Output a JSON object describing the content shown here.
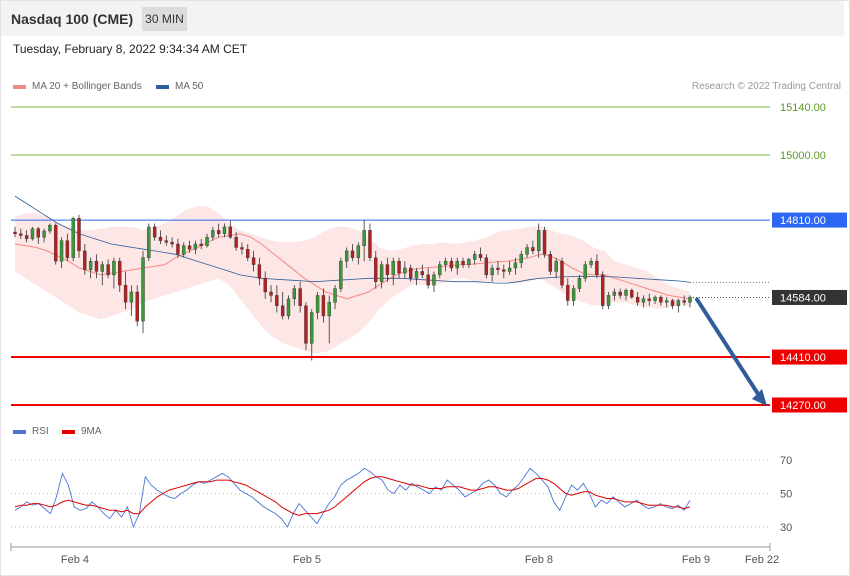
{
  "header": {
    "title": "Nasdaq 100 (CME)",
    "timeframe": "30 MIN",
    "datetime": "Tuesday, February 8, 2022 9:34:34 AM CET"
  },
  "legend": {
    "ma20_label": "MA 20 + Bollinger Bands",
    "ma20_color": "#f28b82",
    "ma50_label": "MA 50",
    "ma50_color": "#2f5d9a"
  },
  "credit": "Research © 2022 Trading Central",
  "rsi_legend": {
    "rsi_label": "RSI",
    "rsi_color": "#4a74d4",
    "ma9_label": "9MA",
    "ma9_color": "#e00000"
  },
  "chart_data": [
    {
      "type": "candlestick",
      "price_range": [
        14270,
        15160
      ],
      "levels": [
        {
          "value": 15140.0,
          "label": "15140.00",
          "style": "thin-green",
          "color": "#7cbd4a"
        },
        {
          "value": 15000.0,
          "label": "15000.00",
          "style": "thin-green",
          "color": "#7cbd4a"
        },
        {
          "value": 14810.0,
          "label": "14810.00",
          "style": "resistance",
          "color": "#2b67f2"
        },
        {
          "value": 14584.0,
          "label": "14584.00",
          "style": "current-price",
          "color": "#333333"
        },
        {
          "value": 14410.0,
          "label": "14410.00",
          "style": "support",
          "color": "#ee0000"
        },
        {
          "value": 14270.0,
          "label": "14270.00",
          "style": "support",
          "color": "#ee0000"
        }
      ],
      "x_tick_labels": [
        "Feb 4",
        "Feb 5",
        "Feb 8",
        "Feb 9",
        "Feb 22"
      ],
      "forecast_arrow": {
        "from": 14584,
        "to": 14270,
        "direction": "down",
        "color": "#2f5d9a"
      },
      "candles": [
        [
          14775,
          14790,
          14760,
          14770
        ],
        [
          14770,
          14785,
          14755,
          14765
        ],
        [
          14765,
          14780,
          14745,
          14755
        ],
        [
          14755,
          14790,
          14750,
          14785
        ],
        [
          14785,
          14790,
          14740,
          14760
        ],
        [
          14760,
          14785,
          14745,
          14778
        ],
        [
          14778,
          14800,
          14770,
          14795
        ],
        [
          14795,
          14800,
          14680,
          14690
        ],
        [
          14690,
          14760,
          14670,
          14750
        ],
        [
          14750,
          14770,
          14690,
          14700
        ],
        [
          14700,
          14820,
          14690,
          14815
        ],
        [
          14815,
          14825,
          14700,
          14720
        ],
        [
          14720,
          14740,
          14650,
          14665
        ],
        [
          14665,
          14700,
          14640,
          14690
        ],
        [
          14690,
          14710,
          14640,
          14660
        ],
        [
          14660,
          14690,
          14620,
          14680
        ],
        [
          14680,
          14695,
          14640,
          14650
        ],
        [
          14650,
          14700,
          14610,
          14690
        ],
        [
          14690,
          14700,
          14600,
          14620
        ],
        [
          14620,
          14660,
          14550,
          14570
        ],
        [
          14570,
          14620,
          14530,
          14600
        ],
        [
          14600,
          14620,
          14500,
          14515
        ],
        [
          14515,
          14720,
          14480,
          14700
        ],
        [
          14700,
          14800,
          14690,
          14790
        ],
        [
          14790,
          14800,
          14750,
          14760
        ],
        [
          14760,
          14780,
          14740,
          14750
        ],
        [
          14750,
          14765,
          14735,
          14745
        ],
        [
          14745,
          14760,
          14730,
          14740
        ],
        [
          14740,
          14755,
          14700,
          14710
        ],
        [
          14710,
          14745,
          14700,
          14735
        ],
        [
          14735,
          14750,
          14715,
          14725
        ],
        [
          14725,
          14750,
          14710,
          14740
        ],
        [
          14740,
          14755,
          14725,
          14735
        ],
        [
          14735,
          14770,
          14730,
          14760
        ],
        [
          14760,
          14790,
          14750,
          14780
        ],
        [
          14780,
          14800,
          14760,
          14770
        ],
        [
          14770,
          14800,
          14760,
          14790
        ],
        [
          14790,
          14810,
          14755,
          14760
        ],
        [
          14760,
          14775,
          14720,
          14730
        ],
        [
          14730,
          14745,
          14710,
          14725
        ],
        [
          14725,
          14740,
          14690,
          14700
        ],
        [
          14700,
          14720,
          14660,
          14680
        ],
        [
          14680,
          14700,
          14620,
          14640
        ],
        [
          14640,
          14660,
          14580,
          14600
        ],
        [
          14600,
          14620,
          14570,
          14590
        ],
        [
          14590,
          14620,
          14540,
          14560
        ],
        [
          14560,
          14600,
          14520,
          14530
        ],
        [
          14530,
          14590,
          14520,
          14580
        ],
        [
          14580,
          14620,
          14560,
          14610
        ],
        [
          14610,
          14630,
          14540,
          14560
        ],
        [
          14560,
          14570,
          14430,
          14450
        ],
        [
          14450,
          14550,
          14400,
          14540
        ],
        [
          14540,
          14600,
          14520,
          14590
        ],
        [
          14590,
          14610,
          14510,
          14530
        ],
        [
          14530,
          14590,
          14450,
          14570
        ],
        [
          14570,
          14620,
          14550,
          14610
        ],
        [
          14610,
          14700,
          14600,
          14690
        ],
        [
          14690,
          14730,
          14670,
          14720
        ],
        [
          14720,
          14740,
          14690,
          14700
        ],
        [
          14700,
          14745,
          14680,
          14735
        ],
        [
          14735,
          14810,
          14690,
          14780
        ],
        [
          14780,
          14800,
          14690,
          14700
        ],
        [
          14700,
          14720,
          14610,
          14630
        ],
        [
          14630,
          14690,
          14610,
          14680
        ],
        [
          14680,
          14700,
          14630,
          14650
        ],
        [
          14650,
          14700,
          14620,
          14690
        ],
        [
          14690,
          14700,
          14640,
          14655
        ],
        [
          14655,
          14690,
          14640,
          14670
        ],
        [
          14670,
          14680,
          14630,
          14640
        ],
        [
          14640,
          14670,
          14620,
          14660
        ],
        [
          14660,
          14680,
          14640,
          14650
        ],
        [
          14650,
          14670,
          14610,
          14620
        ],
        [
          14620,
          14660,
          14600,
          14650
        ],
        [
          14650,
          14690,
          14640,
          14680
        ],
        [
          14680,
          14700,
          14660,
          14690
        ],
        [
          14690,
          14700,
          14660,
          14670
        ],
        [
          14670,
          14700,
          14650,
          14690
        ],
        [
          14690,
          14700,
          14670,
          14680
        ],
        [
          14680,
          14700,
          14670,
          14695
        ],
        [
          14695,
          14720,
          14680,
          14710
        ],
        [
          14710,
          14730,
          14690,
          14700
        ],
        [
          14700,
          14710,
          14640,
          14650
        ],
        [
          14650,
          14680,
          14630,
          14670
        ],
        [
          14670,
          14690,
          14650,
          14665
        ],
        [
          14665,
          14680,
          14640,
          14660
        ],
        [
          14660,
          14690,
          14650,
          14670
        ],
        [
          14670,
          14700,
          14650,
          14685
        ],
        [
          14685,
          14720,
          14670,
          14710
        ],
        [
          14710,
          14740,
          14700,
          14730
        ],
        [
          14730,
          14750,
          14710,
          14720
        ],
        [
          14720,
          14800,
          14700,
          14780
        ],
        [
          14780,
          14790,
          14700,
          14710
        ],
        [
          14710,
          14720,
          14650,
          14660
        ],
        [
          14660,
          14700,
          14640,
          14690
        ],
        [
          14690,
          14700,
          14610,
          14620
        ],
        [
          14620,
          14640,
          14560,
          14575
        ],
        [
          14575,
          14620,
          14560,
          14610
        ],
        [
          14610,
          14650,
          14600,
          14640
        ],
        [
          14640,
          14690,
          14630,
          14680
        ],
        [
          14680,
          14700,
          14670,
          14690
        ],
        [
          14690,
          14710,
          14640,
          14650
        ],
        [
          14650,
          14660,
          14550,
          14560
        ],
        [
          14560,
          14600,
          14550,
          14590
        ],
        [
          14590,
          14610,
          14575,
          14600
        ],
        [
          14600,
          14610,
          14580,
          14590
        ],
        [
          14590,
          14610,
          14575,
          14605
        ],
        [
          14605,
          14610,
          14580,
          14585
        ],
        [
          14585,
          14600,
          14560,
          14570
        ],
        [
          14570,
          14590,
          14555,
          14580
        ],
        [
          14580,
          14595,
          14560,
          14575
        ],
        [
          14575,
          14590,
          14565,
          14585
        ],
        [
          14585,
          14590,
          14560,
          14570
        ],
        [
          14570,
          14585,
          14555,
          14575
        ],
        [
          14575,
          14580,
          14550,
          14560
        ],
        [
          14560,
          14580,
          14540,
          14575
        ],
        [
          14575,
          14590,
          14560,
          14570
        ],
        [
          14570,
          14590,
          14555,
          14585
        ]
      ],
      "ma20": [
        14740,
        14735,
        14730,
        14720,
        14705,
        14690,
        14670,
        14660,
        14650,
        14655,
        14660,
        14665,
        14670,
        14675,
        14680,
        14700,
        14715,
        14730,
        14745,
        14760,
        14765,
        14770,
        14760,
        14740,
        14715,
        14690,
        14665,
        14640,
        14620,
        14600,
        14590,
        14580,
        14590,
        14600,
        14620,
        14640,
        14655,
        14665,
        14670,
        14672,
        14675,
        14678,
        14680,
        14682,
        14685,
        14688,
        14690,
        14695,
        14700,
        14710,
        14705,
        14690,
        14670,
        14655,
        14650,
        14650,
        14640,
        14630,
        14620,
        14610,
        14600,
        14590,
        14585,
        14580
      ],
      "bb_upper": [
        14820,
        14830,
        14830,
        14820,
        14800,
        14790,
        14780,
        14780,
        14785,
        14790,
        14790,
        14790,
        14780,
        14790,
        14800,
        14820,
        14840,
        14850,
        14850,
        14830,
        14800,
        14780,
        14770,
        14760,
        14750,
        14745,
        14745,
        14750,
        14760,
        14780,
        14790,
        14790,
        14780,
        14760,
        14730,
        14720,
        14725,
        14735,
        14740,
        14740,
        14745,
        14740,
        14745,
        14750,
        14760,
        14775,
        14780,
        14785,
        14790,
        14795,
        14780,
        14770,
        14765,
        14750,
        14730,
        14720,
        14690,
        14680,
        14670,
        14660,
        14640,
        14620,
        14610,
        14600
      ],
      "bb_lower": [
        14660,
        14640,
        14620,
        14600,
        14580,
        14560,
        14540,
        14530,
        14520,
        14530,
        14540,
        14550,
        14570,
        14580,
        14590,
        14600,
        14610,
        14620,
        14630,
        14640,
        14620,
        14580,
        14540,
        14500,
        14470,
        14450,
        14440,
        14430,
        14420,
        14425,
        14440,
        14460,
        14480,
        14510,
        14550,
        14580,
        14600,
        14620,
        14620,
        14620,
        14625,
        14640,
        14640,
        14630,
        14630,
        14630,
        14630,
        14625,
        14630,
        14640,
        14620,
        14600,
        14580,
        14570,
        14560,
        14565,
        14570,
        14570,
        14560,
        14555,
        14550,
        14555,
        14560,
        14560
      ],
      "ma50": [
        14880,
        14860,
        14840,
        14820,
        14800,
        14785,
        14770,
        14760,
        14750,
        14740,
        14735,
        14730,
        14725,
        14720,
        14715,
        14710,
        14700,
        14690,
        14680,
        14670,
        14660,
        14650,
        14645,
        14640,
        14638,
        14636,
        14634,
        14632,
        14630,
        14632,
        14634,
        14636,
        14638,
        14640,
        14640,
        14640,
        14640,
        14638,
        14636,
        14634,
        14632,
        14630,
        14630,
        14630,
        14628,
        14626,
        14626,
        14630,
        14636,
        14640,
        14642,
        14644,
        14645,
        14646,
        14645,
        14645,
        14644,
        14642,
        14640,
        14638,
        14636,
        14634,
        14632,
        14628
      ]
    },
    {
      "type": "line",
      "name": "RSI",
      "y_ticks": [
        70,
        50,
        30
      ],
      "ylim": [
        22,
        78
      ],
      "rsi": [
        40,
        42,
        45,
        43,
        44,
        41,
        38,
        48,
        62,
        55,
        42,
        40,
        41,
        45,
        42,
        38,
        35,
        40,
        36,
        42,
        30,
        38,
        60,
        55,
        52,
        50,
        48,
        47,
        50,
        52,
        55,
        57,
        56,
        58,
        60,
        62,
        60,
        56,
        52,
        50,
        48,
        45,
        42,
        40,
        38,
        35,
        30,
        38,
        44,
        40,
        36,
        32,
        38,
        44,
        48,
        55,
        58,
        60,
        62,
        65,
        63,
        60,
        58,
        52,
        50,
        55,
        52,
        56,
        54,
        52,
        50,
        54,
        52,
        58,
        55,
        52,
        48,
        50,
        52,
        56,
        58,
        55,
        50,
        48,
        52,
        55,
        60,
        65,
        62,
        58,
        54,
        45,
        40,
        48,
        55,
        52,
        56,
        50,
        42,
        46,
        44,
        48,
        45,
        42,
        44,
        46,
        43,
        41,
        42,
        44,
        42,
        41,
        43,
        40,
        46
      ],
      "ma9": [
        42,
        43,
        43,
        44,
        44,
        43,
        42,
        43,
        45,
        46,
        45,
        44,
        43,
        43,
        42,
        41,
        40,
        40,
        39,
        40,
        38,
        38,
        42,
        45,
        48,
        50,
        52,
        53,
        54,
        55,
        56,
        57,
        57,
        57,
        58,
        58,
        58,
        57,
        56,
        55,
        53,
        51,
        49,
        47,
        45,
        42,
        40,
        38,
        37,
        38,
        38,
        38,
        39,
        40,
        42,
        45,
        48,
        51,
        54,
        57,
        59,
        60,
        60,
        59,
        58,
        57,
        56,
        55,
        55,
        54,
        53,
        53,
        53,
        54,
        54,
        54,
        53,
        52,
        52,
        53,
        54,
        54,
        53,
        52,
        52,
        53,
        55,
        57,
        59,
        59,
        58,
        56,
        53,
        50,
        49,
        50,
        51,
        51,
        49,
        48,
        47,
        47,
        46,
        45,
        45,
        45,
        44,
        43,
        43,
        43,
        43,
        42,
        42,
        41,
        42
      ]
    }
  ]
}
